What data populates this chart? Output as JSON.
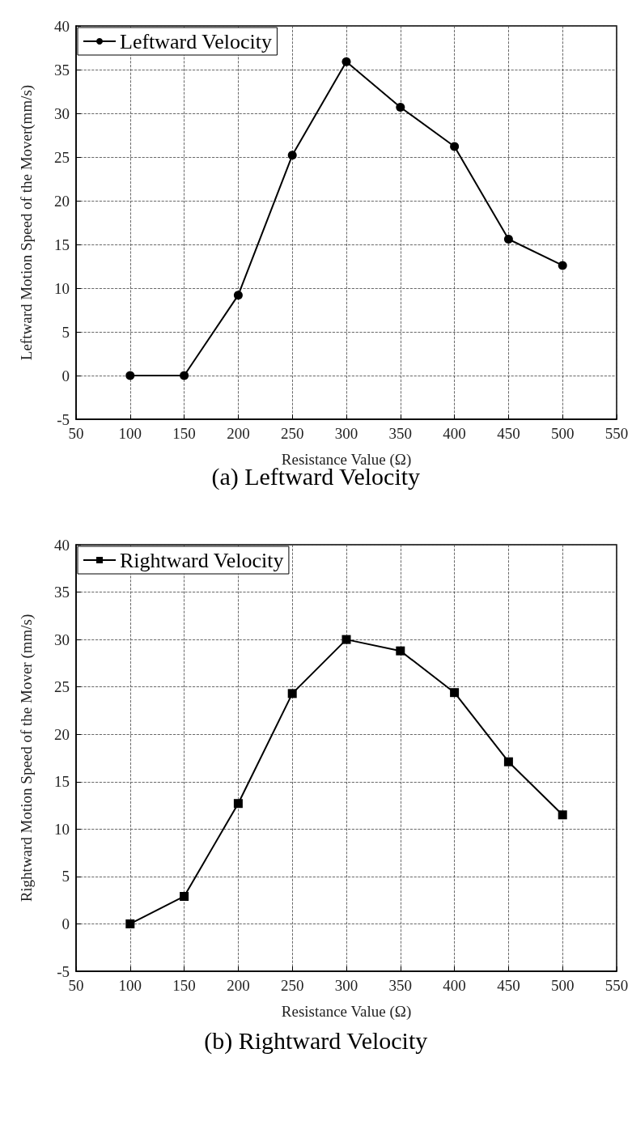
{
  "chart_data": [
    {
      "type": "line",
      "xlabel": "Resistance Value (Ω)",
      "ylabel": "Leftward Motion Speed of the Mover(mm/s)",
      "annotations": [
        "(a) Leftward Velocity"
      ],
      "x": [
        100,
        150,
        200,
        250,
        300,
        350,
        400,
        450,
        500
      ],
      "series": [
        {
          "name": "Leftward Velocity",
          "color": "#000000",
          "values": [
            0,
            0,
            9.2,
            25.2,
            35.9,
            30.7,
            26.2,
            15.6,
            12.6
          ]
        }
      ],
      "xlim": [
        50,
        550
      ],
      "xticks": [
        50,
        100,
        150,
        200,
        250,
        300,
        350,
        400,
        450,
        500,
        550
      ],
      "ylim": [
        -5,
        40
      ],
      "yticks": [
        -5,
        0,
        5,
        10,
        15,
        20,
        25,
        30,
        35,
        40
      ],
      "grid": true,
      "legend": "top left",
      "marker": "circle",
      "line_style": "solid"
    },
    {
      "type": "line",
      "xlabel": "Resistance Value (Ω)",
      "ylabel": "Rightward Motion Speed of the Mover (mm/s)",
      "annotations": [
        "(b) Rightward Velocity"
      ],
      "x": [
        100,
        150,
        200,
        250,
        300,
        350,
        400,
        450,
        500
      ],
      "series": [
        {
          "name": "Rightward Velocity",
          "color": "#000000",
          "values": [
            0,
            2.9,
            12.7,
            24.3,
            30.0,
            28.8,
            24.4,
            17.1,
            11.5
          ]
        }
      ],
      "xlim": [
        50,
        550
      ],
      "xticks": [
        50,
        100,
        150,
        200,
        250,
        300,
        350,
        400,
        450,
        500,
        550
      ],
      "ylim": [
        -5,
        40
      ],
      "yticks": [
        -5,
        0,
        5,
        10,
        15,
        20,
        25,
        30,
        35,
        40
      ],
      "grid": true,
      "legend": "top left",
      "marker": "square",
      "line_style": "solid"
    }
  ]
}
